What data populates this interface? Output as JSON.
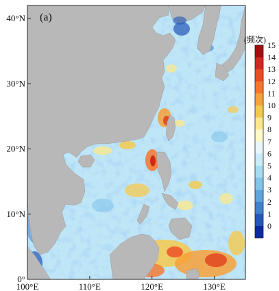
{
  "map": {
    "panel_label": "(a)",
    "x_ticks": [
      {
        "label": "100°E",
        "lon": 100
      },
      {
        "label": "110°E",
        "lon": 110
      },
      {
        "label": "120°E",
        "lon": 120
      },
      {
        "label": "130°E",
        "lon": 130
      }
    ],
    "y_ticks": [
      {
        "label": "0°",
        "lat": 0
      },
      {
        "label": "10°N",
        "lat": 10
      },
      {
        "label": "20°N",
        "lat": 20
      },
      {
        "label": "30°N",
        "lat": 30
      },
      {
        "label": "40°N",
        "lat": 40
      }
    ],
    "lon_range": [
      100,
      135
    ],
    "lat_range": [
      0,
      42
    ],
    "land_color": "#b8b8b8",
    "ocean_base_color": "#bfe6f7"
  },
  "colorbar": {
    "title": "(频次)",
    "levels": [
      "15",
      "14",
      "13",
      "12",
      "11",
      "10",
      "9",
      "8",
      "7",
      "6",
      "5",
      "4",
      "3",
      "2",
      "1",
      "0"
    ],
    "colors": [
      "#a50d0d",
      "#d4261e",
      "#ee4a22",
      "#f8762a",
      "#f7a13a",
      "#f5c94e",
      "#fbe88d",
      "#fff9c8",
      "#e8f7fb",
      "#c9ecf7",
      "#a6dcf1",
      "#83c5ea",
      "#5ea5dd",
      "#3f82ce",
      "#2356b8",
      "#0b2aa0"
    ]
  }
}
